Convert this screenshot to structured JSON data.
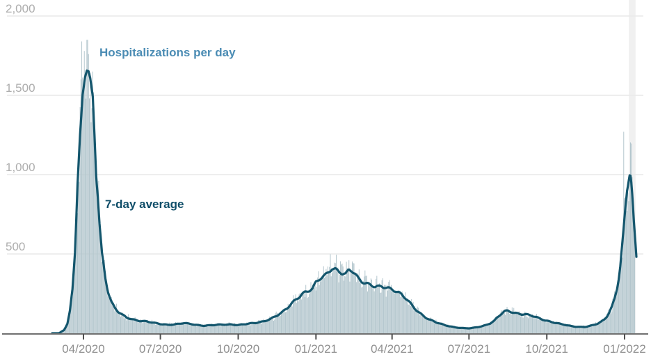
{
  "chart_data": {
    "type": "bar+line",
    "description": "Daily hospitalizations bar chart with 7-day average line, March 2020 - January 2022",
    "x_axis": {
      "epoch": "2020-03-01",
      "domain_days": [
        -60,
        694
      ],
      "ticks": [
        {
          "day": 31,
          "label": "04/2020"
        },
        {
          "day": 122,
          "label": "07/2020"
        },
        {
          "day": 214,
          "label": "10/2020"
        },
        {
          "day": 306,
          "label": "01/2021"
        },
        {
          "day": 396,
          "label": "04/2021"
        },
        {
          "day": 487,
          "label": "07/2021"
        },
        {
          "day": 579,
          "label": "10/2021"
        },
        {
          "day": 671,
          "label": "01/2022"
        }
      ]
    },
    "y_axis": {
      "min": 0,
      "max": 2050,
      "gridlines": true,
      "ticks": [
        {
          "value": 500,
          "label": "500"
        },
        {
          "value": 1000,
          "label": "1,000"
        },
        {
          "value": 1500,
          "label": "1,500"
        },
        {
          "value": 2000,
          "label": "2,000"
        }
      ]
    },
    "series": [
      {
        "name": "Hospitalizations per day",
        "type": "bar",
        "color": "#b3c6cd",
        "note": "daily bars scatter around the 7-day average with roughly +/-20% noise and a weekly dip pattern"
      },
      {
        "name": "7-day average",
        "type": "line",
        "color": "#14566d",
        "points": [
          [
            2,
            0
          ],
          [
            8,
            20
          ],
          [
            12,
            60
          ],
          [
            15,
            140
          ],
          [
            18,
            280
          ],
          [
            21,
            520
          ],
          [
            24,
            950
          ],
          [
            27,
            1250
          ],
          [
            30,
            1500
          ],
          [
            33,
            1620
          ],
          [
            35,
            1660
          ],
          [
            37,
            1650
          ],
          [
            39,
            1600
          ],
          [
            42,
            1480
          ],
          [
            44,
            1250
          ],
          [
            46,
            1000
          ],
          [
            48,
            860
          ],
          [
            50,
            690
          ],
          [
            53,
            500
          ],
          [
            57,
            350
          ],
          [
            60,
            270
          ],
          [
            64,
            200
          ],
          [
            68,
            160
          ],
          [
            72,
            135
          ],
          [
            76,
            118
          ],
          [
            82,
            98
          ],
          [
            89,
            88
          ],
          [
            97,
            80
          ],
          [
            105,
            75
          ],
          [
            113,
            66
          ],
          [
            122,
            58
          ],
          [
            131,
            54
          ],
          [
            140,
            57
          ],
          [
            150,
            63
          ],
          [
            158,
            58
          ],
          [
            166,
            52
          ],
          [
            174,
            48
          ],
          [
            182,
            50
          ],
          [
            190,
            53
          ],
          [
            198,
            55
          ],
          [
            206,
            56
          ],
          [
            214,
            52
          ],
          [
            224,
            58
          ],
          [
            234,
            65
          ],
          [
            244,
            76
          ],
          [
            252,
            90
          ],
          [
            260,
            110
          ],
          [
            266,
            130
          ],
          [
            272,
            160
          ],
          [
            278,
            195
          ],
          [
            284,
            225
          ],
          [
            290,
            248
          ],
          [
            296,
            260
          ],
          [
            302,
            278
          ],
          [
            306,
            320
          ],
          [
            311,
            348
          ],
          [
            316,
            368
          ],
          [
            321,
            390
          ],
          [
            325,
            408
          ],
          [
            329,
            402
          ],
          [
            333,
            385
          ],
          [
            337,
            372
          ],
          [
            341,
            370
          ],
          [
            345,
            400
          ],
          [
            348,
            398
          ],
          [
            352,
            380
          ],
          [
            356,
            352
          ],
          [
            360,
            330
          ],
          [
            364,
            315
          ],
          [
            368,
            306
          ],
          [
            372,
            298
          ],
          [
            376,
            290
          ],
          [
            380,
            292
          ],
          [
            384,
            297
          ],
          [
            388,
            294
          ],
          [
            392,
            288
          ],
          [
            396,
            280
          ],
          [
            400,
            268
          ],
          [
            404,
            252
          ],
          [
            408,
            236
          ],
          [
            412,
            218
          ],
          [
            416,
            197
          ],
          [
            420,
            174
          ],
          [
            424,
            152
          ],
          [
            428,
            133
          ],
          [
            432,
            115
          ],
          [
            436,
            99
          ],
          [
            440,
            86
          ],
          [
            444,
            77
          ],
          [
            448,
            68
          ],
          [
            453,
            60
          ],
          [
            458,
            52
          ],
          [
            464,
            45
          ],
          [
            470,
            38
          ],
          [
            476,
            34
          ],
          [
            482,
            31
          ],
          [
            487,
            31
          ],
          [
            492,
            34
          ],
          [
            497,
            39
          ],
          [
            502,
            45
          ],
          [
            507,
            52
          ],
          [
            512,
            62
          ],
          [
            517,
            78
          ],
          [
            521,
            100
          ],
          [
            525,
            120
          ],
          [
            529,
            138
          ],
          [
            533,
            143
          ],
          [
            537,
            138
          ],
          [
            541,
            130
          ],
          [
            545,
            125
          ],
          [
            549,
            120
          ],
          [
            553,
            118
          ],
          [
            557,
            114
          ],
          [
            561,
            110
          ],
          [
            565,
            104
          ],
          [
            569,
            97
          ],
          [
            573,
            90
          ],
          [
            579,
            80
          ],
          [
            584,
            72
          ],
          [
            589,
            65
          ],
          [
            594,
            59
          ],
          [
            599,
            54
          ],
          [
            604,
            49
          ],
          [
            609,
            45
          ],
          [
            614,
            42
          ],
          [
            619,
            40
          ],
          [
            624,
            40
          ],
          [
            629,
            44
          ],
          [
            634,
            51
          ],
          [
            639,
            60
          ],
          [
            643,
            72
          ],
          [
            647,
            88
          ],
          [
            650,
            108
          ],
          [
            653,
            135
          ],
          [
            656,
            168
          ],
          [
            659,
            215
          ],
          [
            662,
            280
          ],
          [
            664,
            340
          ],
          [
            666,
            420
          ],
          [
            668,
            540
          ],
          [
            670,
            660
          ],
          [
            672,
            790
          ],
          [
            674,
            900
          ],
          [
            676,
            970
          ],
          [
            677,
            1000
          ],
          [
            678,
            995
          ],
          [
            679,
            950
          ],
          [
            680,
            880
          ],
          [
            682,
            700
          ],
          [
            684,
            560
          ],
          [
            685,
            487
          ]
        ]
      }
    ],
    "notable_bars": [
      {
        "day": 29,
        "value": 1840
      },
      {
        "day": 32,
        "value": 1780
      },
      {
        "day": 670,
        "value": 1270
      }
    ],
    "annotations": [
      {
        "text": "Hospitalizations per day",
        "color": "#4b8cb4"
      },
      {
        "text": "7-day average",
        "color": "#0e4d68"
      }
    ],
    "recent_band": {
      "from_day": 676,
      "to_day": 684,
      "color": "#f0f0f0"
    },
    "styles": {
      "grid_color": "#e9e9e9",
      "axis_color": "#707070",
      "tick_mark_color": "#4f4f4f",
      "x_label_color": "#8f8f8f",
      "y_label_color": "#adadad",
      "background": "#ffffff"
    }
  }
}
